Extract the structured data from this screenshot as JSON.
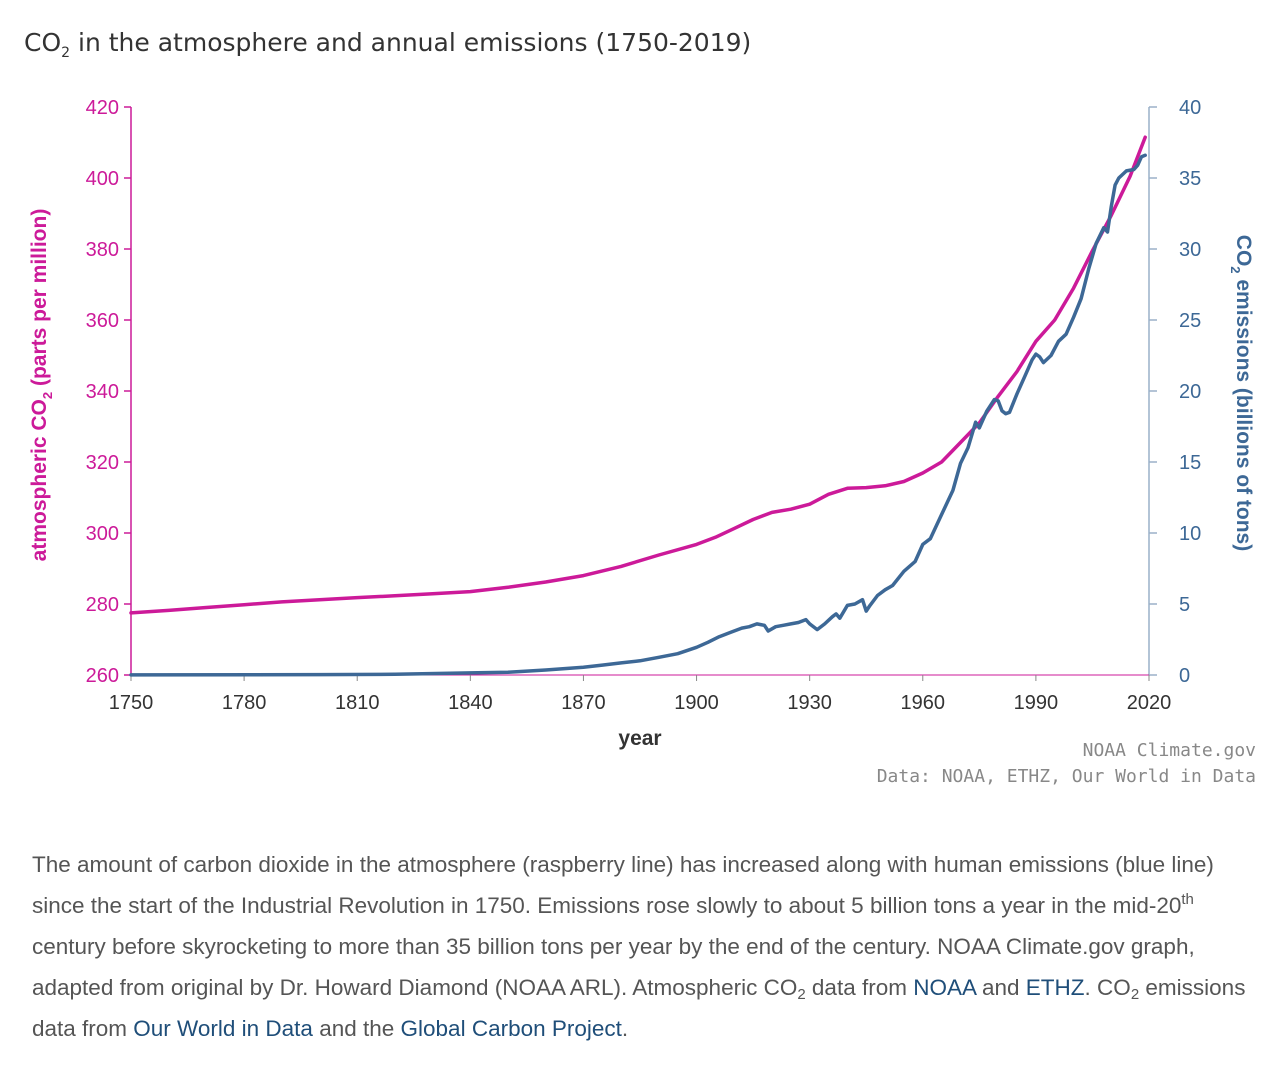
{
  "title": {
    "prefix": "CO",
    "sub": "2",
    "suffix": " in the atmosphere and annual emissions (1750-2019)"
  },
  "colors": {
    "atmospheric": "#cc1a99",
    "emissions": "#3d6896",
    "axis_text": "#333333",
    "credit": "#888888",
    "link": "#1f4e79"
  },
  "credits": {
    "line1": "NOAA Climate.gov",
    "line2": "Data: NOAA, ETHZ, Our World in Data"
  },
  "caption": {
    "p1": "The amount of carbon dioxide in the atmosphere (raspberry line) has increased along with human emissions (blue line) since the start of the Industrial Revolution in 1750. Emissions rose slowly to about 5 billion tons a year in the mid-20",
    "sup": "th",
    "p2": " century before skyrocketing to more than 35 billion tons per year by the end of the century. NOAA Climate.gov graph, adapted from original by Dr. Howard Diamond (NOAA ARL). Atmospheric CO",
    "sub1": "2",
    "p3": " data from ",
    "link_noaa": "NOAA",
    "and1": " and ",
    "link_ethz": "ETHZ",
    "p4": ". CO",
    "sub2": "2",
    "p5": " emissions data from ",
    "link_owid": "Our World in Data",
    "and2": " and the ",
    "link_gcp": "Global Carbon Project",
    "end": "."
  },
  "chart_data": {
    "type": "line",
    "title": "CO2 in the atmosphere and annual emissions (1750-2019)",
    "xlabel": "year",
    "xlim": [
      1750,
      2020
    ],
    "xticks": [
      1750,
      1780,
      1810,
      1840,
      1870,
      1900,
      1930,
      1960,
      1990,
      2020
    ],
    "left_axis": {
      "label_prefix": "atmospheric CO",
      "label_sub": "2",
      "label_suffix": " (parts per million)",
      "ylim": [
        260,
        420
      ],
      "ticks": [
        260,
        280,
        300,
        320,
        340,
        360,
        380,
        400,
        420
      ]
    },
    "right_axis": {
      "label_prefix": "CO",
      "label_sub": "2",
      "label_suffix": " emissions (billions of tons)",
      "ylim": [
        0,
        40
      ],
      "ticks": [
        0,
        5,
        10,
        15,
        20,
        25,
        30,
        35,
        40
      ]
    },
    "grid": false,
    "series": [
      {
        "axis": "left",
        "x": [
          1750,
          1760,
          1770,
          1780,
          1790,
          1800,
          1810,
          1820,
          1830,
          1840,
          1850,
          1860,
          1870,
          1880,
          1890,
          1900,
          1905,
          1910,
          1915,
          1920,
          1925,
          1930,
          1935,
          1940,
          1945,
          1950,
          1955,
          1960,
          1965,
          1970,
          1975,
          1980,
          1985,
          1990,
          1995,
          2000,
          2005,
          2010,
          2015,
          2019
        ],
        "values": [
          277.5,
          278.2,
          279,
          279.8,
          280.6,
          281.2,
          281.8,
          282.3,
          282.9,
          283.5,
          284.7,
          286.2,
          288,
          290.6,
          293.8,
          296.8,
          298.8,
          301.3,
          303.8,
          305.8,
          306.7,
          308.1,
          310.9,
          312.6,
          312.8,
          313.3,
          314.5,
          316.9,
          320,
          325.5,
          331,
          338.5,
          345.5,
          354,
          360,
          369,
          379.5,
          389.5,
          400.5,
          411.5
        ]
      },
      {
        "axis": "right",
        "x": [
          1750,
          1800,
          1820,
          1840,
          1850,
          1860,
          1870,
          1875,
          1880,
          1885,
          1890,
          1895,
          1900,
          1903,
          1906,
          1909,
          1912,
          1914,
          1916,
          1918,
          1919,
          1921,
          1923,
          1925,
          1927,
          1929,
          1930,
          1932,
          1934,
          1936,
          1937,
          1938,
          1940,
          1942,
          1944,
          1945,
          1946,
          1948,
          1950,
          1952,
          1955,
          1958,
          1960,
          1962,
          1965,
          1968,
          1970,
          1972,
          1974,
          1975,
          1977,
          1979,
          1980,
          1981,
          1982,
          1983,
          1985,
          1987,
          1989,
          1990,
          1991,
          1992,
          1994,
          1996,
          1998,
          2000,
          2002,
          2004,
          2006,
          2008,
          2009,
          2010,
          2011,
          2012,
          2014,
          2016,
          2017,
          2018,
          2019
        ],
        "values": [
          0.01,
          0.03,
          0.05,
          0.15,
          0.2,
          0.35,
          0.55,
          0.7,
          0.85,
          1.0,
          1.25,
          1.5,
          1.95,
          2.3,
          2.7,
          3.0,
          3.3,
          3.4,
          3.6,
          3.5,
          3.1,
          3.4,
          3.5,
          3.6,
          3.7,
          3.9,
          3.6,
          3.2,
          3.6,
          4.1,
          4.3,
          4.0,
          4.9,
          5.0,
          5.3,
          4.5,
          4.9,
          5.6,
          6.0,
          6.3,
          7.3,
          8.0,
          9.2,
          9.6,
          11.3,
          13.0,
          14.9,
          16.0,
          17.8,
          17.4,
          18.6,
          19.4,
          19.3,
          18.6,
          18.4,
          18.5,
          19.8,
          21.0,
          22.2,
          22.6,
          22.4,
          22.0,
          22.5,
          23.5,
          24.0,
          25.2,
          26.5,
          28.6,
          30.4,
          31.5,
          31.2,
          33.0,
          34.5,
          35.0,
          35.5,
          35.6,
          35.9,
          36.5,
          36.6
        ]
      }
    ]
  }
}
